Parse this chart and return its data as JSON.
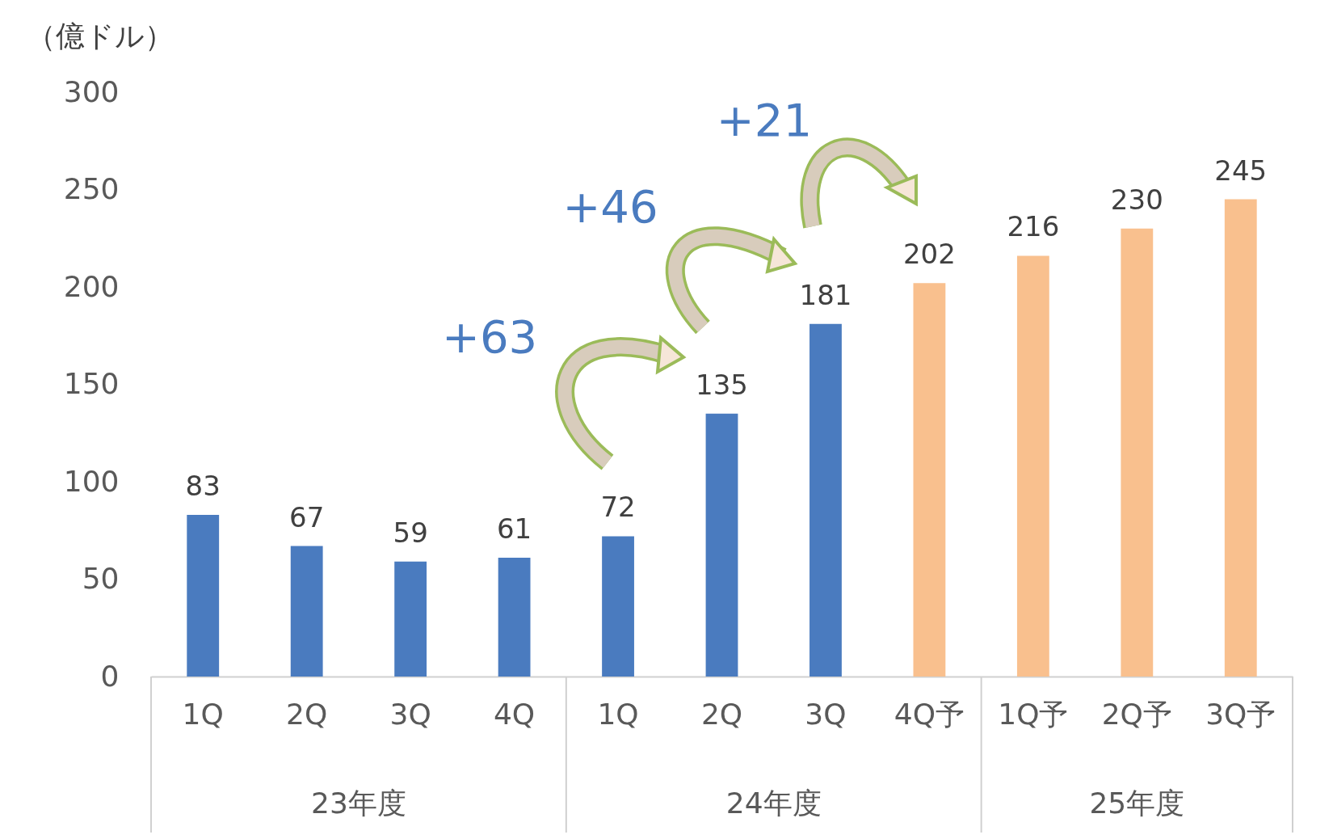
{
  "chart_data": {
    "type": "bar",
    "ylabel": "（億ドル）",
    "categories": [
      "1Q",
      "2Q",
      "3Q",
      "4Q",
      "1Q",
      "2Q",
      "3Q",
      "4Q予",
      "1Q予",
      "2Q予",
      "3Q予"
    ],
    "values": [
      83,
      67,
      59,
      61,
      72,
      135,
      181,
      202,
      216,
      230,
      245
    ],
    "colors": [
      "#4a7bbf",
      "#4a7bbf",
      "#4a7bbf",
      "#4a7bbf",
      "#4a7bbf",
      "#4a7bbf",
      "#4a7bbf",
      "#f9c08e",
      "#f9c08e",
      "#f9c08e",
      "#f9c08e"
    ],
    "ylim": [
      0,
      300
    ],
    "yticks": [
      0,
      50,
      100,
      150,
      200,
      250,
      300
    ],
    "data_labels": true,
    "grid": false,
    "annotations": [
      "+63",
      "+46",
      "+21",
      "23年度",
      "24年度",
      "25年度"
    ]
  }
}
